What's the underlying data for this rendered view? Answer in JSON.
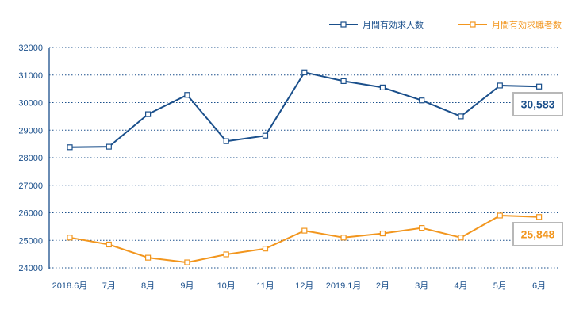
{
  "chart_data": {
    "type": "line",
    "categories": [
      "2018.6月",
      "7月",
      "8月",
      "9月",
      "10月",
      "11月",
      "12月",
      "2019.1月",
      "2月",
      "3月",
      "4月",
      "5月",
      "6月"
    ],
    "ylim": [
      24000,
      32000
    ],
    "yticks": [
      "32000",
      "31000",
      "30000",
      "29000",
      "28000",
      "27000",
      "26000",
      "25000",
      "24000"
    ],
    "grid": true,
    "legend_position": "top-right",
    "series": [
      {
        "name": "月間有効求人数",
        "color": "#1a4f8b",
        "values": [
          28380,
          28400,
          29580,
          30280,
          28600,
          28800,
          31100,
          30780,
          30550,
          30080,
          29500,
          30620,
          30583
        ],
        "end_label": "30,583"
      },
      {
        "name": "月間有効求職者数",
        "color": "#f2961e",
        "values": [
          25100,
          24850,
          24370,
          24200,
          24490,
          24700,
          25350,
          25100,
          25250,
          25450,
          25100,
          25900,
          25848
        ],
        "end_label": "25,848"
      }
    ]
  }
}
